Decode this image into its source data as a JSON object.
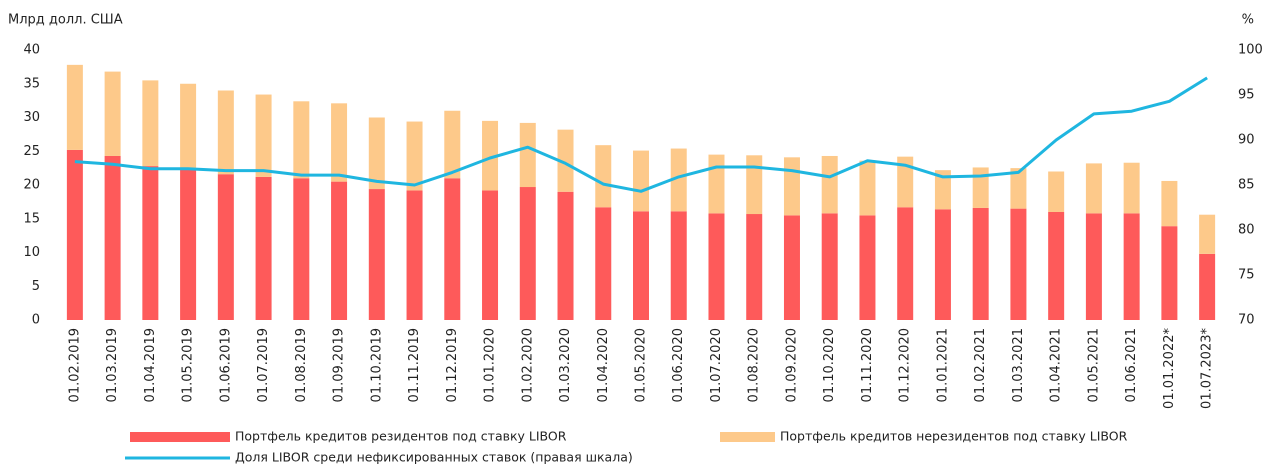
{
  "chart_data": {
    "type": "bar",
    "stacked": true,
    "y_label": "Млрд долл. США",
    "y2_label": "%",
    "categories": [
      "01.02.2019",
      "01.03.2019",
      "01.04.2019",
      "01.05.2019",
      "01.06.2019",
      "01.07.2019",
      "01.08.2019",
      "01.09.2019",
      "01.10.2019",
      "01.11.2019",
      "01.12.2019",
      "01.01.2020",
      "01.02.2020",
      "01.03.2020",
      "01.04.2020",
      "01.05.2020",
      "01.06.2020",
      "01.07.2020",
      "01.08.2020",
      "01.09.2020",
      "01.10.2020",
      "01.11.2020",
      "01.12.2020",
      "01.01.2021",
      "01.02.2021",
      "01.03.2021",
      "01.04.2021",
      "01.05.2021",
      "01.06.2021",
      "01.01.2022*",
      "01.07.2023*"
    ],
    "series": [
      {
        "name": "Портфель кредитов резидентов под ставку LIBOR",
        "color": "#fe5a5a",
        "type": "bar",
        "values": [
          25.2,
          24.3,
          22.8,
          22.3,
          21.6,
          21.2,
          21.0,
          20.5,
          19.4,
          19.2,
          21.0,
          19.2,
          19.7,
          19.0,
          16.7,
          16.1,
          16.1,
          15.8,
          15.7,
          15.5,
          15.8,
          15.5,
          16.7,
          16.4,
          16.6,
          16.5,
          16.0,
          15.8,
          15.8,
          13.9,
          9.8
        ]
      },
      {
        "name": "Портфель кредитов нерезидентов под ставку LIBOR",
        "color": "#fdc98a",
        "type": "bar",
        "values": [
          12.6,
          12.5,
          12.7,
          12.7,
          12.4,
          12.2,
          11.4,
          11.6,
          10.6,
          10.2,
          10.0,
          10.3,
          9.5,
          9.2,
          9.2,
          9.0,
          9.3,
          8.7,
          8.7,
          8.6,
          8.5,
          8.1,
          7.5,
          5.8,
          6.0,
          6.0,
          6.0,
          7.4,
          7.5,
          6.7,
          5.8
        ]
      },
      {
        "name": "Доля LIBOR среди нефиксированных ставок (правая шкала)",
        "color": "#1fb6e0",
        "type": "line",
        "axis": "y2",
        "values": [
          87.6,
          87.3,
          86.8,
          86.8,
          86.6,
          86.6,
          86.1,
          86.1,
          85.4,
          85.0,
          86.4,
          88.0,
          89.2,
          87.4,
          85.1,
          84.3,
          85.9,
          87.0,
          87.0,
          86.6,
          85.9,
          87.7,
          87.2,
          85.9,
          86.0,
          86.4,
          90.0,
          92.9,
          93.2,
          94.3,
          96.9
        ]
      }
    ],
    "ylim": [
      0,
      40
    ],
    "yticks": [
      0,
      5,
      10,
      15,
      20,
      25,
      30,
      35,
      40
    ],
    "y2lim": [
      70,
      100
    ],
    "y2ticks": [
      70,
      75,
      80,
      85,
      90,
      95,
      100
    ],
    "grid": false
  }
}
